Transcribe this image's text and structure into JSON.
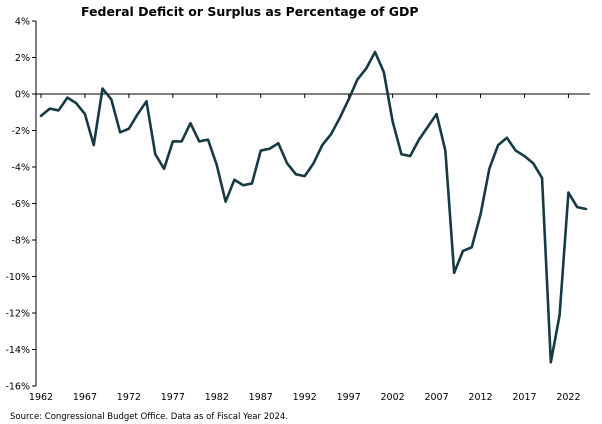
{
  "chart_data": {
    "type": "line",
    "title": "Federal Deficit or Surplus as Percentage of GDP",
    "source": "Source: Congressional Budget Office. Data as of Fiscal Year 2024.",
    "xlabel": "",
    "ylabel": "",
    "xlim": [
      1962,
      2024
    ],
    "ylim": [
      -16,
      4
    ],
    "x_ticks": [
      1962,
      1967,
      1972,
      1977,
      1982,
      1987,
      1992,
      1997,
      2002,
      2007,
      2012,
      2017,
      2022
    ],
    "x_tick_labels": [
      "1962",
      "1967",
      "1972",
      "1977",
      "1982",
      "1987",
      "1992",
      "1997",
      "2002",
      "2007",
      "2012",
      "2017",
      "2022"
    ],
    "y_ticks": [
      4,
      2,
      0,
      -2,
      -4,
      -6,
      -8,
      -10,
      -12,
      -14,
      -16
    ],
    "y_tick_labels": [
      "4%",
      "2%",
      "0%",
      "-2%",
      "-4%",
      "-6%",
      "-8%",
      "-10%",
      "-12%",
      "-14%",
      "-16%"
    ],
    "grid": false,
    "legend": "none",
    "line_color": "#163a43",
    "series": [
      {
        "x": [
          1962,
          1963,
          1964,
          1965,
          1966,
          1967,
          1968,
          1969,
          1970,
          1971,
          1972,
          1973,
          1974,
          1975,
          1976,
          1977,
          1978,
          1979,
          1980,
          1981,
          1982,
          1983,
          1984,
          1985,
          1986,
          1987,
          1988,
          1989,
          1990,
          1991,
          1992,
          1993,
          1994,
          1995,
          1996,
          1997,
          1998,
          1999,
          2000,
          2001,
          2002,
          2003,
          2004,
          2005,
          2006,
          2007,
          2008,
          2009,
          2010,
          2011,
          2012,
          2013,
          2014,
          2015,
          2016,
          2017,
          2018,
          2019,
          2020,
          2021,
          2022,
          2023,
          2024
        ],
        "values": [
          -1.2,
          -0.8,
          -0.9,
          -0.2,
          -0.5,
          -1.1,
          -2.8,
          0.3,
          -0.3,
          -2.1,
          -1.9,
          -1.1,
          -0.4,
          -3.3,
          -4.1,
          -2.6,
          -2.6,
          -1.6,
          -2.6,
          -2.5,
          -3.9,
          -5.9,
          -4.7,
          -5.0,
          -4.9,
          -3.1,
          -3.0,
          -2.7,
          -3.8,
          -4.4,
          -4.5,
          -3.8,
          -2.8,
          -2.2,
          -1.3,
          -0.3,
          0.8,
          1.4,
          2.3,
          1.2,
          -1.5,
          -3.3,
          -3.4,
          -2.5,
          -1.8,
          -1.1,
          -3.1,
          -9.8,
          -8.6,
          -8.4,
          -6.6,
          -4.1,
          -2.8,
          -2.4,
          -3.1,
          -3.4,
          -3.8,
          -4.6,
          -14.7,
          -12.1,
          -5.4,
          -6.2,
          -6.3
        ]
      }
    ]
  }
}
